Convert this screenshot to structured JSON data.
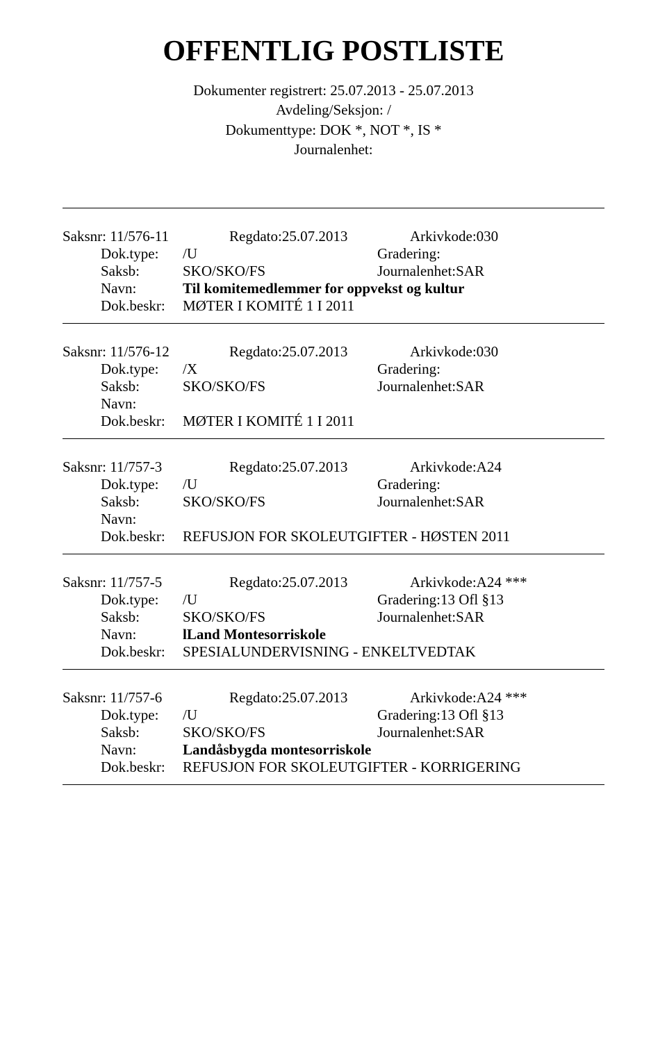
{
  "header": {
    "title": "OFFENTLIG POSTLISTE",
    "line1": "Dokumenter registrert: 25.07.2013 - 25.07.2013",
    "line2": "Avdeling/Seksjon: /",
    "line3": "Dokumenttype: DOK *, NOT *, IS *",
    "line4": "Journalenhet:"
  },
  "labels": {
    "saksnr": "Saksnr:",
    "regdato": "Regdato:",
    "arkiv": "Arkivkode:",
    "doktype": "Dok.type:",
    "gradering": "Gradering:",
    "saksb": "Saksb:",
    "journalenhet": "Journalenhet:",
    "navn": "Navn:",
    "dokbeskr": "Dok.beskr:"
  },
  "records": [
    {
      "saksnr": "11/576-11",
      "regdato": "25.07.2013",
      "arkiv": "030",
      "doktype": "/U",
      "gradering": "",
      "saksb": "SKO/SKO/FS",
      "journalenhet": "SAR",
      "navn": "Til komitemedlemmer for oppvekst og kultur",
      "dokbeskr": "MØTER I KOMITÉ 1 I 2011"
    },
    {
      "saksnr": "11/576-12",
      "regdato": "25.07.2013",
      "arkiv": "030",
      "doktype": "/X",
      "gradering": "",
      "saksb": "SKO/SKO/FS",
      "journalenhet": "SAR",
      "navn": "",
      "dokbeskr": "MØTER I KOMITÉ 1 I 2011"
    },
    {
      "saksnr": "11/757-3",
      "regdato": "25.07.2013",
      "arkiv": "A24",
      "doktype": "/U",
      "gradering": "",
      "saksb": "SKO/SKO/FS",
      "journalenhet": "SAR",
      "navn": "",
      "dokbeskr": "REFUSJON FOR SKOLEUTGIFTER - HØSTEN 2011"
    },
    {
      "saksnr": "11/757-5",
      "regdato": "25.07.2013",
      "arkiv": "A24 ***",
      "doktype": "/U",
      "gradering": "13 Ofl §13",
      "saksb": "SKO/SKO/FS",
      "journalenhet": "SAR",
      "navn": "lLand Montesorriskole",
      "dokbeskr": "SPESIALUNDERVISNING  - ENKELTVEDTAK"
    },
    {
      "saksnr": "11/757-6",
      "regdato": "25.07.2013",
      "arkiv": "A24 ***",
      "doktype": "/U",
      "gradering": "13 Ofl §13",
      "saksb": "SKO/SKO/FS",
      "journalenhet": "SAR",
      "navn": "Landåsbygda montesorriskole",
      "dokbeskr": "REFUSJON FOR SKOLEUTGIFTER - KORRIGERING"
    }
  ]
}
